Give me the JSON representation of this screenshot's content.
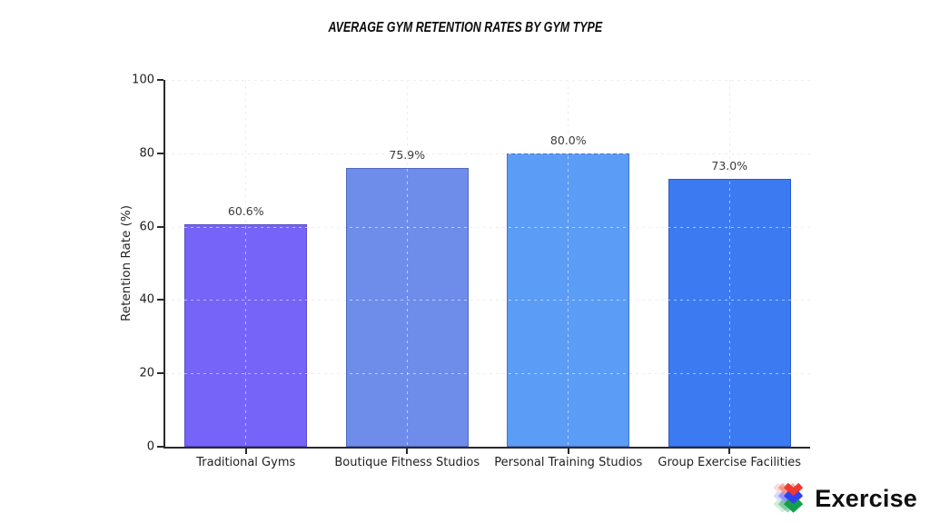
{
  "page": {
    "background": "#ffffff"
  },
  "chart_data": {
    "type": "bar",
    "title": "AVERAGE GYM RETENTION RATES BY GYM TYPE",
    "ylabel": "Retention Rate (%)",
    "xlabel": "",
    "ylim": [
      0,
      100
    ],
    "yticks": [
      0,
      20,
      40,
      60,
      80,
      100
    ],
    "grid": "dashed gridlines on both axes, drawn over bars",
    "legend": "none",
    "categories": [
      "Traditional Gyms",
      "Boutique Fitness Studios",
      "Personal Training Studios",
      "Group Exercise Facilities"
    ],
    "values": [
      60.6,
      75.9,
      80.0,
      73.0
    ],
    "value_labels": [
      "60.6%",
      "75.9%",
      "80.0%",
      "73.0%"
    ],
    "bar_colors": [
      "#7663f7",
      "#6e8deb",
      "#5b9cf6",
      "#3b7af1"
    ],
    "axis_color": "#2a2a2a",
    "grid_color": "#d8d8d8",
    "value_label_color": "#3c3c3c",
    "tick_label_color": "#1f1f1f"
  },
  "branding": {
    "logo_text": "Exercise",
    "logo_text_color": "#101010",
    "logo_icon_colors": [
      "#ee3a2c",
      "#3340f0",
      "#13a04b"
    ]
  }
}
